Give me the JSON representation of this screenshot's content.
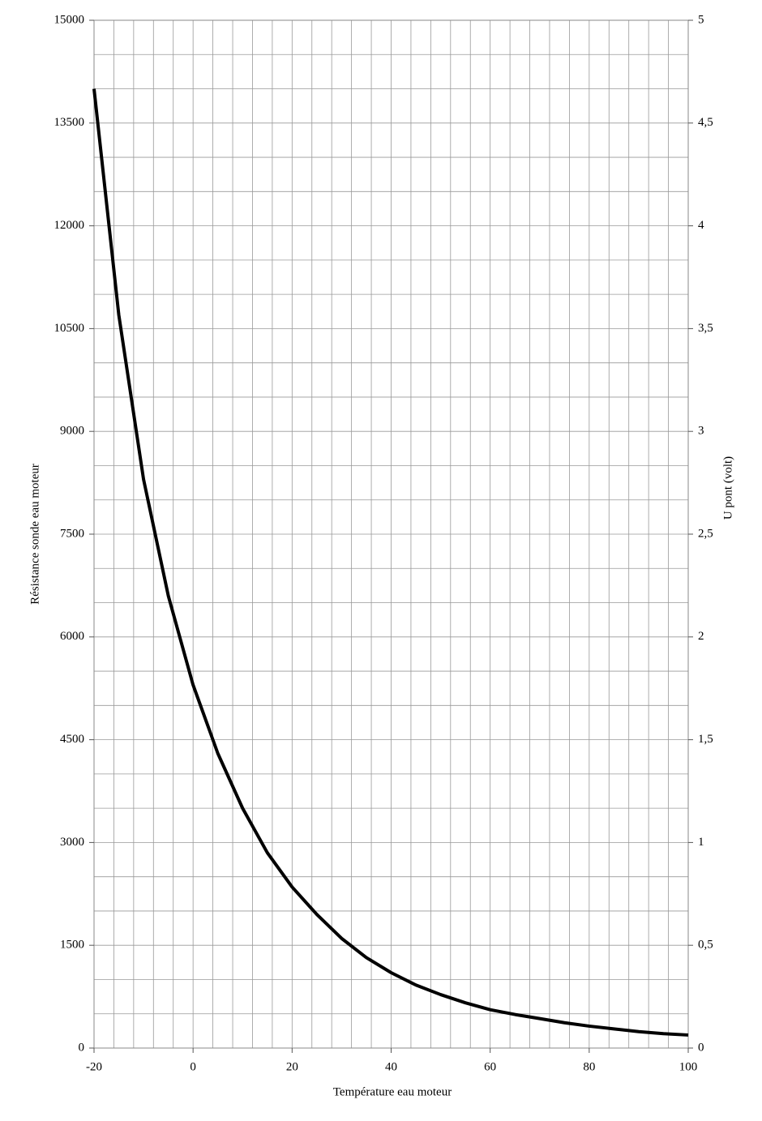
{
  "chart_data": {
    "type": "line",
    "x_label": "Température eau moteur",
    "y_label": "Résistance sonde eau moteur",
    "y2_label": "U pont (volt)",
    "x": [
      -20,
      -15,
      -10,
      -5,
      0,
      5,
      10,
      15,
      20,
      25,
      30,
      35,
      40,
      45,
      50,
      55,
      60,
      65,
      70,
      75,
      80,
      85,
      90,
      95,
      100
    ],
    "values": [
      14000,
      10700,
      8300,
      6600,
      5300,
      4300,
      3500,
      2850,
      2350,
      1950,
      1600,
      1320,
      1100,
      920,
      780,
      660,
      560,
      490,
      430,
      370,
      320,
      280,
      240,
      210,
      190
    ],
    "color": "#000000",
    "xlim": [
      -20,
      100
    ],
    "xticks": [
      -20,
      0,
      20,
      40,
      60,
      80,
      100
    ],
    "ylim": [
      0,
      15000
    ],
    "yticks": [
      0,
      1500,
      3000,
      4500,
      6000,
      7500,
      9000,
      10500,
      12000,
      13500,
      15000
    ],
    "y2lim": [
      0,
      5
    ],
    "y2ticks": [
      0,
      {
        "value": 0.5,
        "label": "0,5"
      },
      1,
      {
        "value": 1.5,
        "label": "1,5"
      },
      2,
      {
        "value": 2.5,
        "label": "2,5"
      },
      3,
      {
        "value": 3.5,
        "label": "3,5"
      },
      4,
      {
        "value": 4.5,
        "label": "4,5"
      },
      5
    ],
    "grid": {
      "x_step": 4,
      "y_step": 500
    }
  }
}
